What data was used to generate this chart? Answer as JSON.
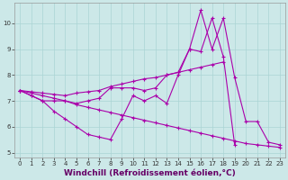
{
  "xlabel": "Windchill (Refroidissement éolien,°C)",
  "background_color": "#cce8e8",
  "line_color": "#aa00aa",
  "marker": "+",
  "xlim": [
    -0.5,
    23.5
  ],
  "ylim": [
    4.8,
    10.8
  ],
  "yticks": [
    5,
    6,
    7,
    8,
    9,
    10
  ],
  "xticks": [
    0,
    1,
    2,
    3,
    4,
    5,
    6,
    7,
    8,
    9,
    10,
    11,
    12,
    13,
    14,
    15,
    16,
    17,
    18,
    19,
    20,
    21,
    22,
    23
  ],
  "series": [
    [
      7.4,
      7.2,
      7.0,
      6.6,
      6.3,
      6.0,
      5.7,
      5.6,
      5.5,
      6.3,
      7.2,
      7.0,
      7.2,
      6.9,
      8.0,
      9.0,
      10.5,
      9.0,
      10.2,
      7.9,
      6.2,
      6.2,
      5.4,
      5.3
    ],
    [
      7.4,
      7.2,
      7.0,
      7.0,
      7.0,
      6.9,
      7.0,
      7.1,
      7.5,
      7.5,
      7.5,
      7.4,
      7.5,
      8.0,
      8.1,
      9.0,
      8.9,
      10.2,
      8.7,
      5.3,
      null,
      null,
      null,
      null
    ],
    [
      7.4,
      7.35,
      7.3,
      7.25,
      7.2,
      7.3,
      7.35,
      7.4,
      7.55,
      7.65,
      7.75,
      7.85,
      7.9,
      8.0,
      8.1,
      8.2,
      8.3,
      8.4,
      8.5,
      null,
      null,
      null,
      null,
      null
    ],
    [
      7.4,
      7.3,
      7.2,
      7.1,
      7.0,
      6.85,
      6.75,
      6.65,
      6.55,
      6.45,
      6.35,
      6.25,
      6.15,
      6.05,
      5.95,
      5.85,
      5.75,
      5.65,
      5.55,
      5.45,
      5.35,
      5.3,
      5.25,
      5.2
    ]
  ],
  "grid_color": "#aad4d4",
  "tick_fontsize": 5,
  "label_fontsize": 6.5,
  "linewidth": 0.8,
  "markersize": 3,
  "markeredgewidth": 0.8
}
